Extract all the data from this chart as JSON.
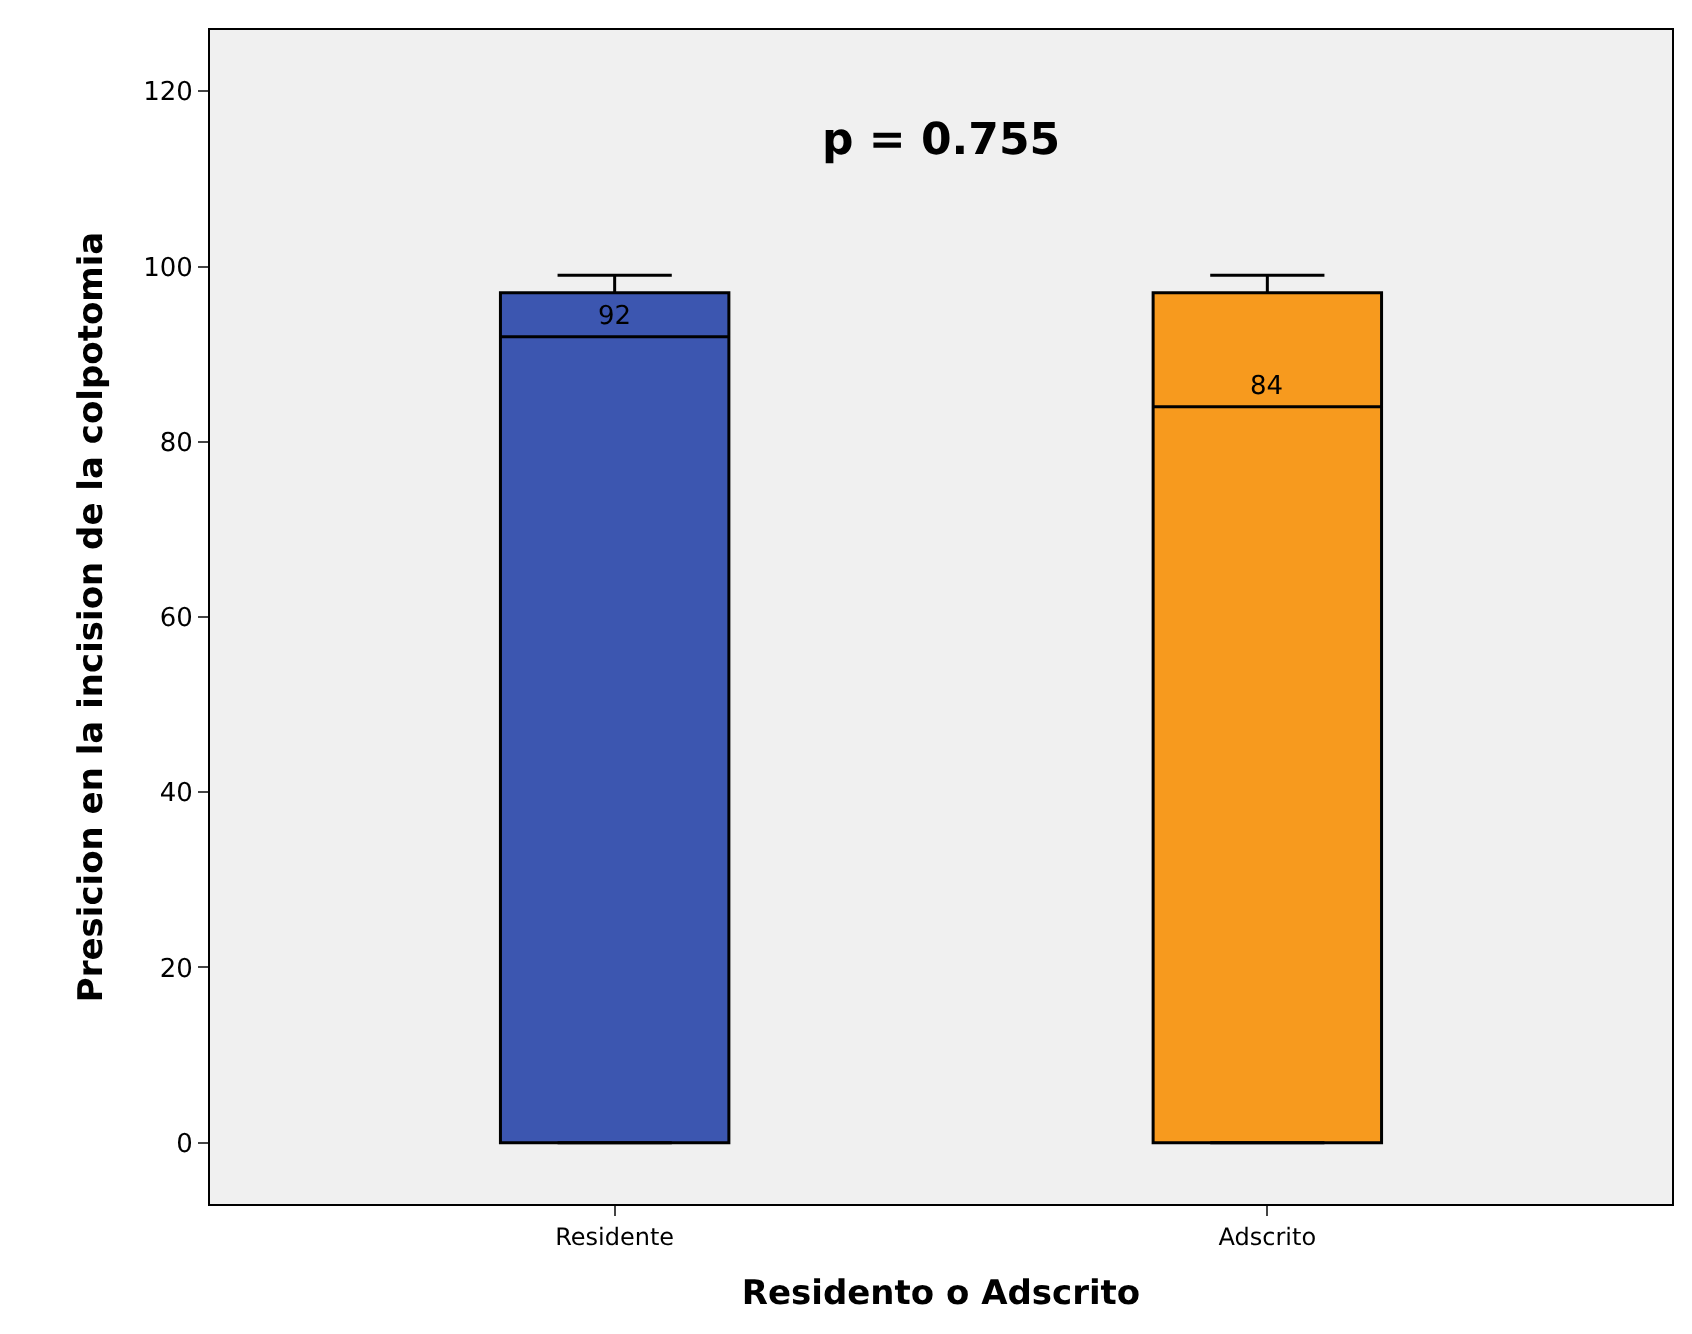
{
  "chart_data": {
    "type": "box",
    "xlabel": "Residento o Adscrito",
    "ylabel": "Presicion en la incision de la colpotomia",
    "categories": [
      "Residente",
      "Adscrito"
    ],
    "colors": [
      "#3c56b0",
      "#f79a1e"
    ],
    "boxes": [
      {
        "low": 0,
        "q1": 0,
        "median": 92,
        "q3": 97,
        "high": 99
      },
      {
        "low": 0,
        "q1": 0,
        "median": 84,
        "q3": 97,
        "high": 99
      }
    ],
    "annotations": [
      "p = 0.755",
      {
        "text": "92",
        "x": "Residente",
        "y": 92
      },
      {
        "text": "84",
        "x": "Adscrito",
        "y": 84
      }
    ],
    "ylim": [
      -7,
      127
    ],
    "yticks": [
      0,
      20,
      40,
      60,
      80,
      100,
      120
    ],
    "grid": false
  }
}
